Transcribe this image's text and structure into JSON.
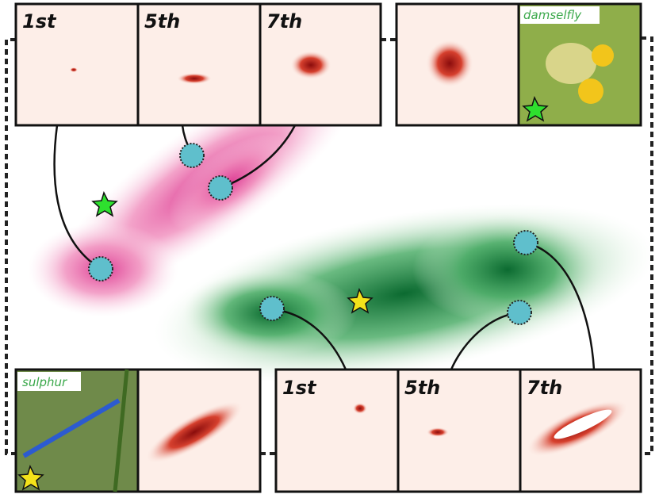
{
  "top_row": {
    "panels": [
      "1st",
      "5th",
      "7th"
    ],
    "image_label": "damselfly"
  },
  "bottom_row": {
    "image_label": "sulphur",
    "panels": [
      "1st",
      "5th",
      "7th"
    ]
  }
}
